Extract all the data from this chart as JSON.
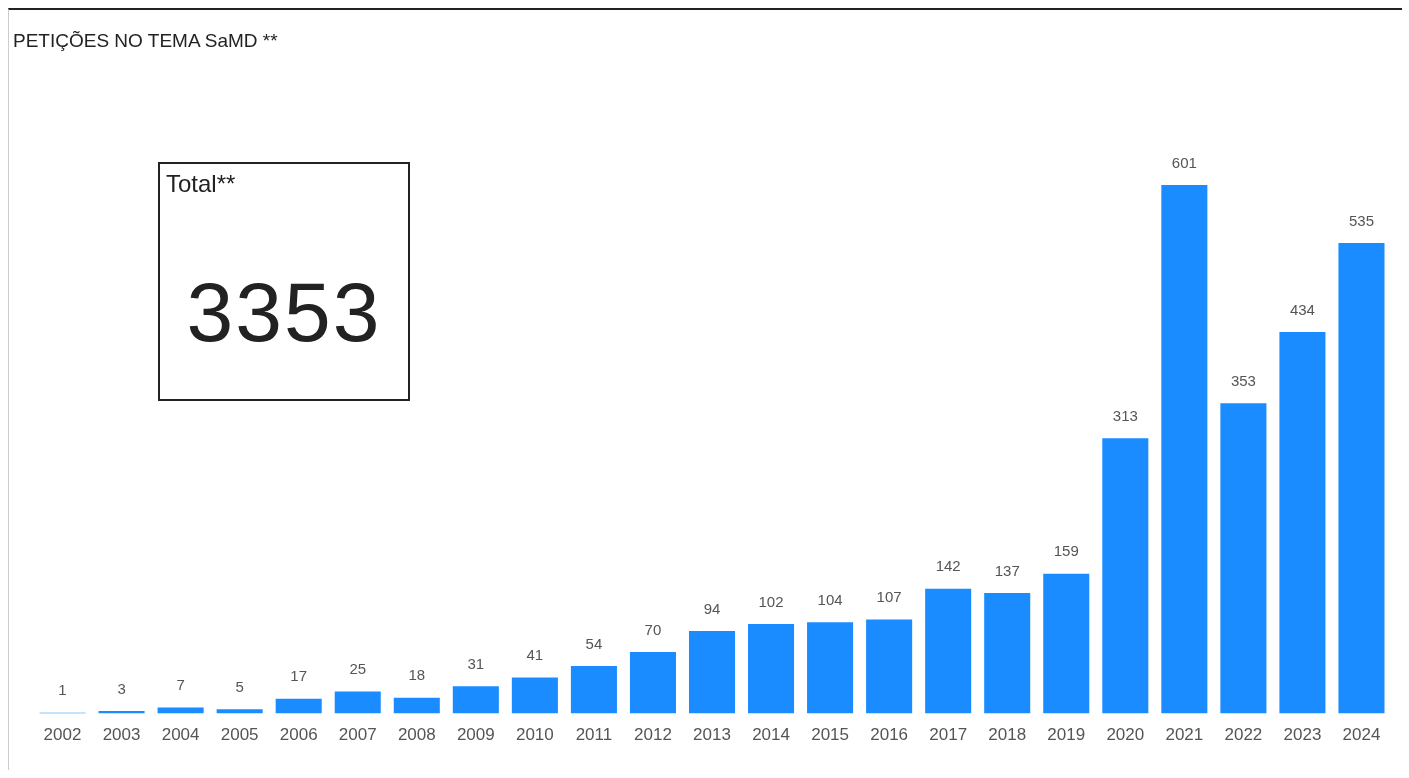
{
  "chart_data": [
    {
      "type": "bar",
      "title": "PETIÇÕES NO TEMA SaMD **",
      "categories": [
        "2002",
        "2003",
        "2004",
        "2005",
        "2006",
        "2007",
        "2008",
        "2009",
        "2010",
        "2011",
        "2012",
        "2013",
        "2014",
        "2015",
        "2016",
        "2017",
        "2018",
        "2019",
        "2020",
        "2021",
        "2022",
        "2023",
        "2024"
      ],
      "values": [
        1,
        3,
        7,
        5,
        17,
        25,
        18,
        31,
        41,
        54,
        70,
        94,
        102,
        104,
        107,
        142,
        137,
        159,
        313,
        601,
        353,
        434,
        535
      ],
      "color": "#1a8cff",
      "data_labels": true,
      "grid": false,
      "legend": false
    },
    {
      "type": "other",
      "title": "Total**",
      "annotations": [
        "3353"
      ]
    }
  ]
}
